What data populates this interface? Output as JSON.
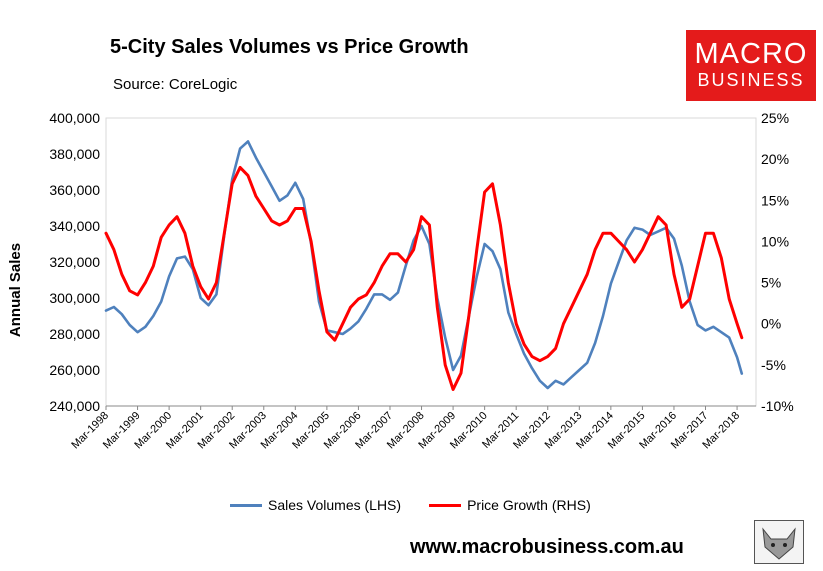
{
  "chart_data": {
    "type": "line",
    "title": "5-City Sales Volumes vs Price Growth",
    "subtitle": "Source: CoreLogic",
    "ylabel": "Annual Sales",
    "y2label": "",
    "ylim": [
      240000,
      400000
    ],
    "y2lim": [
      -10,
      25
    ],
    "yticks": [
      "400,000",
      "380,000",
      "360,000",
      "340,000",
      "320,000",
      "300,000",
      "280,000",
      "260,000",
      "240,000"
    ],
    "y2ticks": [
      "25%",
      "20%",
      "15%",
      "10%",
      "5%",
      "0%",
      "-5%",
      "-10%"
    ],
    "categories": [
      "Mar-1998",
      "Mar-1999",
      "Mar-2000",
      "Mar-2001",
      "Mar-2002",
      "Mar-2003",
      "Mar-2004",
      "Mar-2005",
      "Mar-2006",
      "Mar-2007",
      "Mar-2008",
      "Mar-2009",
      "Mar-2010",
      "Mar-2011",
      "Mar-2012",
      "Mar-2013",
      "Mar-2014",
      "Mar-2015",
      "Mar-2016",
      "Mar-2017",
      "Mar-2018"
    ],
    "series": [
      {
        "name": "Sales Volumes (LHS)",
        "axis": "left",
        "color": "#4f81bd",
        "x": [
          1998.0,
          1998.25,
          1998.5,
          1998.75,
          1999.0,
          1999.25,
          1999.5,
          1999.75,
          2000.0,
          2000.25,
          2000.5,
          2000.75,
          2001.0,
          2001.25,
          2001.5,
          2001.75,
          2002.0,
          2002.25,
          2002.5,
          2002.75,
          2003.0,
          2003.25,
          2003.5,
          2003.75,
          2004.0,
          2004.25,
          2004.5,
          2004.75,
          2005.0,
          2005.25,
          2005.5,
          2005.75,
          2006.0,
          2006.25,
          2006.5,
          2006.75,
          2007.0,
          2007.25,
          2007.5,
          2007.75,
          2008.0,
          2008.25,
          2008.5,
          2008.75,
          2009.0,
          2009.25,
          2009.5,
          2009.75,
          2010.0,
          2010.25,
          2010.5,
          2010.75,
          2011.0,
          2011.25,
          2011.5,
          2011.75,
          2012.0,
          2012.25,
          2012.5,
          2012.75,
          2013.0,
          2013.25,
          2013.5,
          2013.75,
          2014.0,
          2014.25,
          2014.5,
          2014.75,
          2015.0,
          2015.25,
          2015.5,
          2015.75,
          2016.0,
          2016.25,
          2016.5,
          2016.75,
          2017.0,
          2017.25,
          2017.5,
          2017.75,
          2018.0,
          2018.15
        ],
        "values": [
          293000,
          295000,
          291000,
          285000,
          281000,
          284000,
          290000,
          298000,
          312000,
          322000,
          323000,
          316000,
          300000,
          296000,
          302000,
          335000,
          366000,
          383000,
          387000,
          378000,
          370000,
          362000,
          354000,
          357000,
          364000,
          355000,
          330000,
          298000,
          282000,
          281000,
          280000,
          283000,
          287000,
          294000,
          302000,
          302000,
          299000,
          303000,
          318000,
          332000,
          340000,
          330000,
          300000,
          278000,
          260000,
          268000,
          290000,
          312000,
          330000,
          326000,
          316000,
          292000,
          280000,
          269000,
          261000,
          254000,
          250000,
          254000,
          252000,
          256000,
          260000,
          264000,
          275000,
          290000,
          308000,
          320000,
          332000,
          339000,
          338000,
          335000,
          337000,
          339000,
          333000,
          318000,
          298000,
          285000,
          282000,
          284000,
          281000,
          278000,
          267000,
          258000
        ]
      },
      {
        "name": "Price Growth (RHS)",
        "axis": "right",
        "color": "#ff0000",
        "x": [
          1998.0,
          1998.25,
          1998.5,
          1998.75,
          1999.0,
          1999.25,
          1999.5,
          1999.75,
          2000.0,
          2000.25,
          2000.5,
          2000.75,
          2001.0,
          2001.25,
          2001.5,
          2001.75,
          2002.0,
          2002.25,
          2002.5,
          2002.75,
          2003.0,
          2003.25,
          2003.5,
          2003.75,
          2004.0,
          2004.25,
          2004.5,
          2004.75,
          2005.0,
          2005.25,
          2005.5,
          2005.75,
          2006.0,
          2006.25,
          2006.5,
          2006.75,
          2007.0,
          2007.25,
          2007.5,
          2007.75,
          2008.0,
          2008.25,
          2008.5,
          2008.75,
          2009.0,
          2009.25,
          2009.5,
          2009.75,
          2010.0,
          2010.25,
          2010.5,
          2010.75,
          2011.0,
          2011.25,
          2011.5,
          2011.75,
          2012.0,
          2012.25,
          2012.5,
          2012.75,
          2013.0,
          2013.25,
          2013.5,
          2013.75,
          2014.0,
          2014.25,
          2014.5,
          2014.75,
          2015.0,
          2015.25,
          2015.5,
          2015.75,
          2016.0,
          2016.25,
          2016.5,
          2016.75,
          2017.0,
          2017.25,
          2017.5,
          2017.75,
          2018.0,
          2018.15
        ],
        "values": [
          11,
          9,
          6,
          4,
          3.5,
          5,
          7,
          10.5,
          12,
          13,
          11,
          7,
          4.5,
          3,
          5,
          11,
          17,
          19,
          18,
          15.5,
          14,
          12.5,
          12,
          12.5,
          14,
          14,
          10,
          4,
          -1,
          -2,
          0,
          2,
          3,
          3.5,
          5,
          7,
          8.5,
          8.5,
          7.5,
          9,
          13,
          12,
          2,
          -5,
          -8,
          -6,
          1,
          9,
          16,
          17,
          12,
          5,
          0,
          -2.5,
          -4,
          -4.5,
          -4,
          -3,
          0,
          2,
          4,
          6,
          9,
          11,
          11,
          10,
          9,
          7.5,
          9,
          11,
          13,
          12,
          6,
          2,
          3,
          7,
          11,
          11,
          8,
          3,
          0,
          -1.7
        ]
      }
    ],
    "legend": [
      "Sales Volumes (LHS)",
      "Price Growth (RHS)"
    ],
    "legend_position": "bottom"
  },
  "logo": {
    "line1": "MACRO",
    "line2": "BUSINESS"
  },
  "footer": "www.macrobusiness.com.au"
}
